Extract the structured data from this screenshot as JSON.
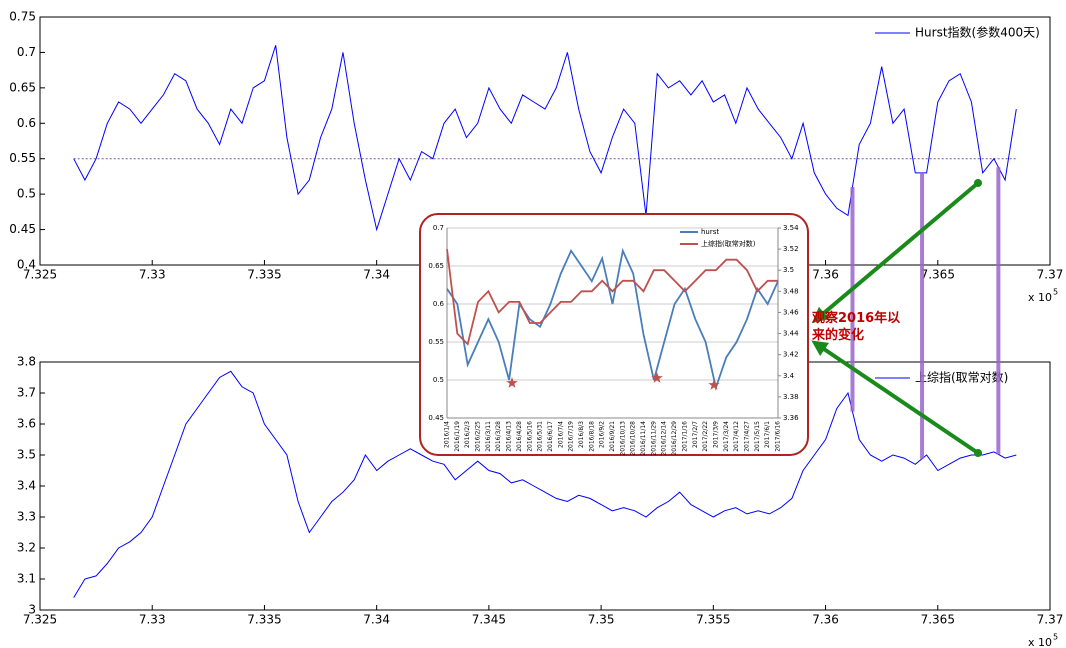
{
  "chart_data": [
    {
      "type": "line",
      "xlim": [
        7.325,
        7.37
      ],
      "xticks": [
        7.325,
        7.33,
        7.335,
        7.34,
        7.345,
        7.35,
        7.355,
        7.36,
        7.365,
        7.37
      ],
      "ylim": [
        0.4,
        0.75
      ],
      "yticks": [
        0.4,
        0.45,
        0.5,
        0.55,
        0.6,
        0.65,
        0.7,
        0.75
      ],
      "x_multiplier": "x 10",
      "x_exponent": "5",
      "hline": 0.55,
      "vlines": [
        7.3612,
        7.3643,
        7.3677
      ],
      "x": [
        7.3265,
        7.327,
        7.3275,
        7.328,
        7.3285,
        7.329,
        7.3295,
        7.33,
        7.3305,
        7.331,
        7.3315,
        7.332,
        7.3325,
        7.333,
        7.3335,
        7.334,
        7.3345,
        7.335,
        7.3355,
        7.336,
        7.3365,
        7.337,
        7.3375,
        7.338,
        7.3385,
        7.339,
        7.3395,
        7.34,
        7.3405,
        7.341,
        7.3415,
        7.342,
        7.3425,
        7.343,
        7.3435,
        7.344,
        7.3445,
        7.345,
        7.3455,
        7.346,
        7.3465,
        7.347,
        7.3475,
        7.348,
        7.3485,
        7.349,
        7.3495,
        7.35,
        7.3505,
        7.351,
        7.3515,
        7.352,
        7.3525,
        7.353,
        7.3535,
        7.354,
        7.3545,
        7.355,
        7.3555,
        7.356,
        7.3565,
        7.357,
        7.3575,
        7.358,
        7.3585,
        7.359,
        7.3595,
        7.36,
        7.3605,
        7.361,
        7.3615,
        7.362,
        7.3625,
        7.363,
        7.3635,
        7.364,
        7.3645,
        7.365,
        7.3655,
        7.366,
        7.3665,
        7.367,
        7.3675,
        7.368,
        7.3685
      ],
      "series": [
        {
          "name": "Hurst指数(参数400天)",
          "color": "#0000ff",
          "values": [
            0.55,
            0.52,
            0.55,
            0.6,
            0.63,
            0.62,
            0.6,
            0.62,
            0.64,
            0.67,
            0.66,
            0.62,
            0.6,
            0.57,
            0.62,
            0.6,
            0.65,
            0.66,
            0.71,
            0.58,
            0.5,
            0.52,
            0.58,
            0.62,
            0.7,
            0.6,
            0.52,
            0.45,
            0.5,
            0.55,
            0.52,
            0.56,
            0.55,
            0.6,
            0.62,
            0.58,
            0.6,
            0.65,
            0.62,
            0.6,
            0.64,
            0.63,
            0.62,
            0.65,
            0.7,
            0.62,
            0.56,
            0.53,
            0.58,
            0.62,
            0.6,
            0.47,
            0.67,
            0.65,
            0.66,
            0.64,
            0.66,
            0.63,
            0.64,
            0.6,
            0.65,
            0.62,
            0.6,
            0.58,
            0.55,
            0.6,
            0.53,
            0.5,
            0.48,
            0.47,
            0.57,
            0.6,
            0.68,
            0.6,
            0.62,
            0.53,
            0.53,
            0.63,
            0.66,
            0.67,
            0.63,
            0.53,
            0.55,
            0.52,
            0.62
          ]
        }
      ]
    },
    {
      "type": "line",
      "xlim": [
        7.325,
        7.37
      ],
      "xticks": [
        7.325,
        7.33,
        7.335,
        7.34,
        7.345,
        7.35,
        7.355,
        7.36,
        7.365,
        7.37
      ],
      "ylim": [
        3,
        3.8
      ],
      "yticks": [
        3,
        3.1,
        3.2,
        3.3,
        3.4,
        3.5,
        3.6,
        3.7,
        3.8
      ],
      "x_multiplier": "x 10",
      "x_exponent": "5",
      "x": [
        7.3265,
        7.327,
        7.3275,
        7.328,
        7.3285,
        7.329,
        7.3295,
        7.33,
        7.3305,
        7.331,
        7.3315,
        7.332,
        7.3325,
        7.333,
        7.3335,
        7.334,
        7.3345,
        7.335,
        7.3355,
        7.336,
        7.3365,
        7.337,
        7.3375,
        7.338,
        7.3385,
        7.339,
        7.3395,
        7.34,
        7.3405,
        7.341,
        7.3415,
        7.342,
        7.3425,
        7.343,
        7.3435,
        7.344,
        7.3445,
        7.345,
        7.3455,
        7.346,
        7.3465,
        7.347,
        7.3475,
        7.348,
        7.3485,
        7.349,
        7.3495,
        7.35,
        7.3505,
        7.351,
        7.3515,
        7.352,
        7.3525,
        7.353,
        7.3535,
        7.354,
        7.3545,
        7.355,
        7.3555,
        7.356,
        7.3565,
        7.357,
        7.3575,
        7.358,
        7.3585,
        7.359,
        7.3595,
        7.36,
        7.3605,
        7.361,
        7.3615,
        7.362,
        7.3625,
        7.363,
        7.3635,
        7.364,
        7.3645,
        7.365,
        7.3655,
        7.366,
        7.3665,
        7.367,
        7.3675,
        7.368,
        7.3685
      ],
      "series": [
        {
          "name": "上综指(取常对数)",
          "color": "#0000ff",
          "values": [
            3.04,
            3.1,
            3.11,
            3.15,
            3.2,
            3.22,
            3.25,
            3.3,
            3.4,
            3.5,
            3.6,
            3.65,
            3.7,
            3.75,
            3.77,
            3.72,
            3.7,
            3.6,
            3.55,
            3.5,
            3.35,
            3.25,
            3.3,
            3.35,
            3.38,
            3.42,
            3.5,
            3.45,
            3.48,
            3.5,
            3.52,
            3.5,
            3.48,
            3.47,
            3.42,
            3.45,
            3.48,
            3.45,
            3.44,
            3.41,
            3.42,
            3.4,
            3.38,
            3.36,
            3.35,
            3.37,
            3.36,
            3.34,
            3.32,
            3.33,
            3.32,
            3.3,
            3.33,
            3.35,
            3.38,
            3.34,
            3.32,
            3.3,
            3.32,
            3.33,
            3.31,
            3.32,
            3.31,
            3.33,
            3.36,
            3.45,
            3.5,
            3.55,
            3.65,
            3.7,
            3.55,
            3.5,
            3.48,
            3.5,
            3.49,
            3.47,
            3.5,
            3.45,
            3.47,
            3.49,
            3.5,
            3.5,
            3.51,
            3.49,
            3.5
          ]
        }
      ]
    },
    {
      "type": "line",
      "categories": [
        "2016/1/4",
        "2016/1/19",
        "2016/2/3",
        "2016/2/25",
        "2016/3/11",
        "2016/3/28",
        "2016/4/13",
        "2016/4/28",
        "2016/5/16",
        "2016/5/31",
        "2016/6/17",
        "2016/7/4",
        "2016/7/19",
        "2016/8/3",
        "2016/8/18",
        "2016/9/2",
        "2016/9/21",
        "2016/10/13",
        "2016/10/28",
        "2016/11/14",
        "2016/11/29",
        "2016/12/14",
        "2016/12/29",
        "2017/1/16",
        "2017/2/7",
        "2017/2/22",
        "2017/3/9",
        "2017/3/24",
        "2017/4/12",
        "2017/4/27",
        "2017/5/15",
        "2017/6/1",
        "2017/6/16"
      ],
      "ylim": [
        0.45,
        0.7
      ],
      "yticks": [
        0.45,
        0.5,
        0.55,
        0.6,
        0.65,
        0.7
      ],
      "y2lim": [
        3.36,
        3.54
      ],
      "y2ticks": [
        3.36,
        3.38,
        3.4,
        3.42,
        3.44,
        3.46,
        3.48,
        3.5,
        3.52,
        3.54
      ],
      "grid": true,
      "series": [
        {
          "name": "hurst",
          "color": "#4a7ebb",
          "values": [
            0.62,
            0.6,
            0.52,
            0.55,
            0.58,
            0.55,
            0.5,
            0.6,
            0.58,
            0.57,
            0.6,
            0.64,
            0.67,
            0.65,
            0.63,
            0.66,
            0.6,
            0.67,
            0.64,
            0.56,
            0.5,
            0.55,
            0.6,
            0.62,
            0.58,
            0.55,
            0.49,
            0.53,
            0.55,
            0.58,
            0.62,
            0.6,
            0.63
          ]
        },
        {
          "name": "上综指(取常对数)",
          "color": "#c0504d",
          "axis": "y2",
          "values": [
            3.52,
            3.44,
            3.43,
            3.47,
            3.48,
            3.46,
            3.47,
            3.47,
            3.45,
            3.45,
            3.46,
            3.47,
            3.47,
            3.48,
            3.48,
            3.49,
            3.48,
            3.49,
            3.49,
            3.48,
            3.5,
            3.5,
            3.49,
            3.48,
            3.49,
            3.5,
            3.5,
            3.51,
            3.51,
            3.5,
            3.48,
            3.49,
            3.49
          ]
        }
      ]
    }
  ],
  "annotation": "观察2016年以来的变化"
}
